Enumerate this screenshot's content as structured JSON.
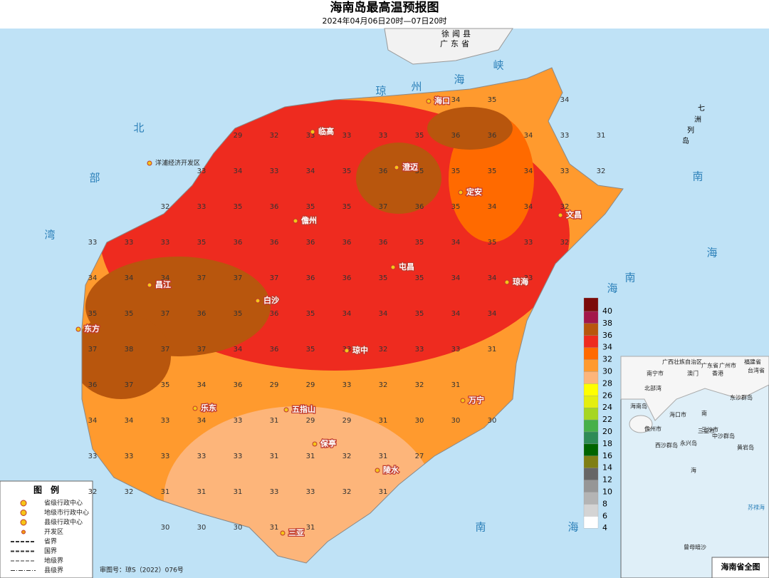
{
  "header": {
    "title": "海南岛最高温预报图",
    "subtitle": "2024年04月06日20时—07日20时"
  },
  "mainland": [
    "徐闻县",
    "广东省"
  ],
  "sea_labels": [
    "琼",
    "州",
    "海",
    "峡",
    "北",
    "部",
    "湾",
    "南",
    "海",
    "南",
    "海",
    "南",
    "海"
  ],
  "islands": [
    "七",
    "洲",
    "列",
    "岛"
  ],
  "cities": [
    "海口",
    "澄迈",
    "定安",
    "文昌",
    "临高",
    "儋州",
    "屯昌",
    "琼海",
    "白沙",
    "昌江",
    "东方",
    "琼中",
    "乐东",
    "五指山",
    "万宁",
    "保亭",
    "陵水",
    "三亚",
    "洋浦经济开发区"
  ],
  "temperature_grid": [
    [
      null,
      null,
      null,
      null,
      null,
      null,
      null,
      null,
      null,
      null,
      34,
      35,
      null,
      34,
      null
    ],
    [
      null,
      null,
      null,
      null,
      29,
      32,
      33,
      33,
      33,
      35,
      36,
      36,
      34,
      33,
      31
    ],
    [
      null,
      null,
      null,
      33,
      34,
      33,
      34,
      35,
      36,
      35,
      35,
      35,
      34,
      33,
      32
    ],
    [
      null,
      null,
      32,
      33,
      35,
      36,
      35,
      35,
      37,
      36,
      35,
      34,
      34,
      32,
      null
    ],
    [
      33,
      33,
      33,
      35,
      36,
      36,
      36,
      36,
      36,
      35,
      34,
      35,
      33,
      32,
      null
    ],
    [
      34,
      34,
      34,
      37,
      37,
      37,
      36,
      36,
      35,
      35,
      34,
      34,
      33,
      null,
      null
    ],
    [
      35,
      35,
      37,
      36,
      35,
      36,
      35,
      34,
      34,
      35,
      34,
      34,
      null,
      null,
      null
    ],
    [
      37,
      38,
      37,
      37,
      34,
      36,
      35,
      33,
      32,
      33,
      33,
      31,
      null,
      null,
      null
    ],
    [
      36,
      37,
      35,
      34,
      36,
      29,
      29,
      33,
      32,
      32,
      31,
      null,
      null,
      null,
      null
    ],
    [
      34,
      34,
      33,
      34,
      33,
      31,
      29,
      29,
      31,
      30,
      30,
      30,
      null,
      null,
      null
    ],
    [
      33,
      33,
      33,
      33,
      33,
      31,
      31,
      32,
      31,
      27,
      null,
      null,
      null,
      null,
      null
    ],
    [
      32,
      32,
      31,
      31,
      31,
      33,
      33,
      32,
      31,
      null,
      null,
      null,
      null,
      null,
      null
    ],
    [
      null,
      null,
      30,
      30,
      30,
      31,
      31,
      null,
      null,
      null,
      null,
      null,
      null,
      null,
      null
    ]
  ],
  "color_scale": {
    "ticks": [
      40,
      38,
      36,
      34,
      32,
      30,
      28,
      26,
      24,
      22,
      20,
      18,
      16,
      14,
      12,
      10,
      8,
      6,
      4
    ],
    "colors": [
      "#7b0a0a",
      "#a3174a",
      "#b8560d",
      "#ee2b1f",
      "#ff6a00",
      "#ff9a2e",
      "#fdb57a",
      "#ffff00",
      "#e4ee10",
      "#a6d622",
      "#46b04a",
      "#2e8b57",
      "#006400",
      "#7f7f14",
      "#666666",
      "#969696",
      "#b4b4b4",
      "#d4d4d4",
      "#ffffff"
    ]
  },
  "legend": {
    "title": "图　例",
    "items": [
      "省级行政中心",
      "地级市行政中心",
      "县级行政中心",
      "开发区",
      "省界",
      "国界",
      "地级界",
      "县级界"
    ],
    "approval": "审图号：琼S（2022）076号"
  },
  "inset": {
    "title": "海南省全图",
    "labels": [
      "广西壮族自治区",
      "广东省",
      "福建省",
      "南宁市",
      "广州市",
      "澳门",
      "香港",
      "台湾省",
      "北部湾",
      "海口市",
      "儋州市",
      "三亚市",
      "海南岛",
      "东沙群岛",
      "西沙群岛",
      "永兴岛",
      "三沙市",
      "中沙群岛",
      "黄岩岛",
      "南",
      "海",
      "苏禄海",
      "曾母暗沙"
    ]
  }
}
